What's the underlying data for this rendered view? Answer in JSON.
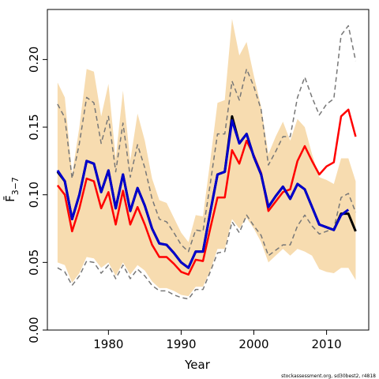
{
  "chart_data": {
    "type": "line",
    "x_label": "Year",
    "y_label": "F̄",
    "y_label_subscript": "3−7",
    "footnote": "stockassessment.org, sd30best2, r4818",
    "x": [
      1973,
      1974,
      1975,
      1976,
      1977,
      1978,
      1979,
      1980,
      1981,
      1982,
      1983,
      1984,
      1985,
      1986,
      1987,
      1988,
      1989,
      1990,
      1991,
      1992,
      1993,
      1994,
      1995,
      1996,
      1997,
      1998,
      1999,
      2000,
      2001,
      2002,
      2003,
      2004,
      2005,
      2006,
      2007,
      2008,
      2009,
      2010,
      2011,
      2012,
      2013,
      2014
    ],
    "bands": [
      {
        "color": "#f7dcb0",
        "lower": [
          0.05,
          0.048,
          0.035,
          0.042,
          0.054,
          0.053,
          0.046,
          0.05,
          0.04,
          0.05,
          0.041,
          0.048,
          0.044,
          0.036,
          0.031,
          0.031,
          0.029,
          0.026,
          0.025,
          0.032,
          0.032,
          0.044,
          0.06,
          0.06,
          0.082,
          0.075,
          0.083,
          0.075,
          0.065,
          0.05,
          0.055,
          0.06,
          0.055,
          0.06,
          0.058,
          0.055,
          0.045,
          0.043,
          0.042,
          0.046,
          0.046,
          0.037
        ],
        "upper": [
          0.183,
          0.172,
          0.115,
          0.15,
          0.193,
          0.191,
          0.158,
          0.182,
          0.127,
          0.177,
          0.125,
          0.16,
          0.14,
          0.112,
          0.096,
          0.094,
          0.083,
          0.072,
          0.065,
          0.085,
          0.084,
          0.125,
          0.168,
          0.17,
          0.23,
          0.203,
          0.213,
          0.188,
          0.165,
          0.13,
          0.143,
          0.154,
          0.14,
          0.156,
          0.15,
          0.13,
          0.113,
          0.111,
          0.108,
          0.127,
          0.127,
          0.11
        ]
      }
    ],
    "series": [
      {
        "color": "#777777",
        "dashed": true,
        "width": 1.5,
        "values": [
          0.167,
          0.157,
          0.112,
          0.138,
          0.172,
          0.168,
          0.138,
          0.158,
          0.117,
          0.153,
          0.113,
          0.137,
          0.12,
          0.097,
          0.082,
          0.08,
          0.072,
          0.063,
          0.058,
          0.074,
          0.073,
          0.108,
          0.145,
          0.145,
          0.184,
          0.17,
          0.193,
          0.18,
          0.163,
          0.122,
          0.132,
          0.143,
          0.143,
          0.172,
          0.187,
          0.172,
          0.159,
          0.167,
          0.171,
          0.218,
          0.225,
          0.199
        ]
      },
      {
        "color": "#777777",
        "dashed": true,
        "width": 1.5,
        "values": [
          0.046,
          0.043,
          0.033,
          0.04,
          0.051,
          0.05,
          0.042,
          0.048,
          0.038,
          0.048,
          0.038,
          0.045,
          0.04,
          0.033,
          0.029,
          0.029,
          0.026,
          0.024,
          0.023,
          0.03,
          0.03,
          0.043,
          0.057,
          0.058,
          0.08,
          0.072,
          0.085,
          0.077,
          0.07,
          0.055,
          0.059,
          0.063,
          0.063,
          0.077,
          0.085,
          0.077,
          0.071,
          0.073,
          0.075,
          0.098,
          0.101,
          0.087
        ]
      },
      {
        "color": "#ff0000",
        "dashed": false,
        "width": 2.5,
        "values": [
          0.107,
          0.1,
          0.073,
          0.09,
          0.112,
          0.11,
          0.09,
          0.102,
          0.078,
          0.103,
          0.078,
          0.091,
          0.078,
          0.063,
          0.054,
          0.054,
          0.049,
          0.043,
          0.041,
          0.052,
          0.051,
          0.075,
          0.098,
          0.098,
          0.133,
          0.123,
          0.14,
          0.129,
          0.116,
          0.088,
          0.095,
          0.102,
          0.104,
          0.125,
          0.136,
          0.125,
          0.115,
          0.121,
          0.124,
          0.158,
          0.163,
          0.143
        ]
      },
      {
        "color": "#000000",
        "dashed": false,
        "width": 3,
        "values": [
          0.117,
          0.11,
          0.082,
          0.1,
          0.125,
          0.123,
          0.102,
          0.118,
          0.09,
          0.115,
          0.088,
          0.105,
          0.092,
          0.075,
          0.064,
          0.063,
          0.057,
          0.05,
          0.046,
          0.058,
          0.058,
          0.087,
          0.115,
          0.117,
          0.158,
          0.138,
          0.145,
          0.128,
          0.115,
          0.091,
          0.099,
          0.106,
          0.097,
          0.108,
          0.104,
          0.091,
          0.078,
          0.076,
          0.074,
          0.086,
          0.086,
          0.073
        ]
      },
      {
        "color": "#0000cc",
        "dashed": false,
        "width": 3,
        "values": [
          0.118,
          0.11,
          0.082,
          0.1,
          0.125,
          0.123,
          0.102,
          0.118,
          0.09,
          0.115,
          0.088,
          0.105,
          0.092,
          0.075,
          0.064,
          0.063,
          0.057,
          0.05,
          0.046,
          0.058,
          0.058,
          0.087,
          0.115,
          0.117,
          0.155,
          0.138,
          0.145,
          0.128,
          0.115,
          0.091,
          0.099,
          0.106,
          0.097,
          0.108,
          0.104,
          0.091,
          0.078,
          0.076,
          0.074,
          0.085,
          0.089,
          null
        ]
      }
    ],
    "xlim": [
      1971.6,
      2015.8
    ],
    "ylim": [
      0,
      0.237
    ],
    "xticks": [
      1980,
      1990,
      2000,
      2010
    ],
    "yticks": [
      {
        "value": 0,
        "label": "0.00"
      },
      0.05,
      {
        "value": 0.1,
        "label": "0.10"
      },
      0.15,
      {
        "value": 0.2,
        "label": "0.20"
      }
    ]
  }
}
